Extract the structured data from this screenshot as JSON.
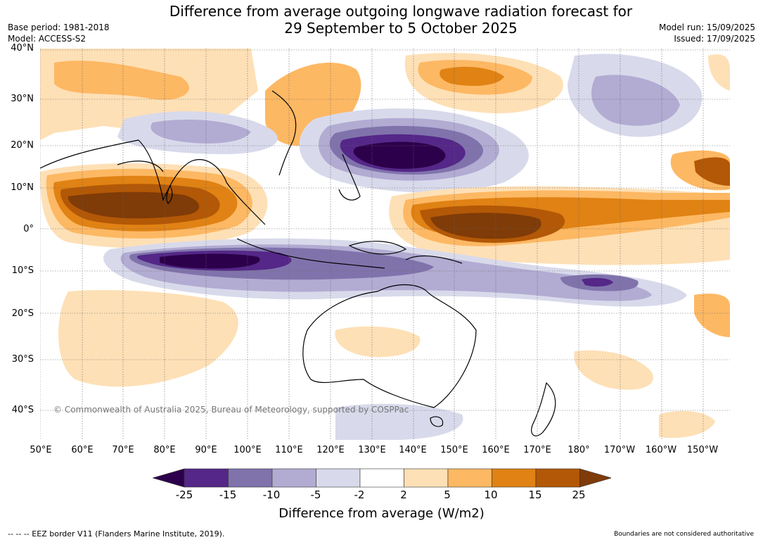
{
  "title": {
    "line1": "Difference from average outgoing longwave radiation forecast for",
    "line2": "29 September to 5 October 2025"
  },
  "meta_left": {
    "base_period": "Base period: 1981-2018",
    "model": "Model: ACCESS-S2"
  },
  "meta_right": {
    "model_run": "Model run: 15/09/2025",
    "issued": "Issued: 17/09/2025"
  },
  "copyright": "© Commonwealth of Australia 2025, Bureau of Meteorology, supported by COSPPac",
  "latitudes": [
    "40°N",
    "30°N",
    "20°N",
    "10°N",
    "0°",
    "10°S",
    "20°S",
    "30°S",
    "40°S"
  ],
  "longitudes": [
    "50°E",
    "60°E",
    "70°E",
    "80°E",
    "90°E",
    "100°E",
    "110°E",
    "120°E",
    "130°E",
    "140°E",
    "150°E",
    "160°E",
    "170°E",
    "180°",
    "170°W",
    "160°W",
    "150°W"
  ],
  "colorbar": {
    "ticks": [
      "-25",
      "-15",
      "-10",
      "-5",
      "-2",
      "2",
      "5",
      "10",
      "15",
      "25"
    ],
    "colors": [
      "#2d004b",
      "#542788",
      "#8073ac",
      "#b2abd2",
      "#d8daeb",
      "#ffffff",
      "#fee0b6",
      "#fdb863",
      "#e08214",
      "#b35806",
      "#7f3b08"
    ],
    "label": "Difference from average (W/m2)"
  },
  "footer": {
    "left": "--  --  -- EEZ border V11 (Flanders Marine Institute, 2019).",
    "right": "Boundaries are not considered authoritative"
  }
}
